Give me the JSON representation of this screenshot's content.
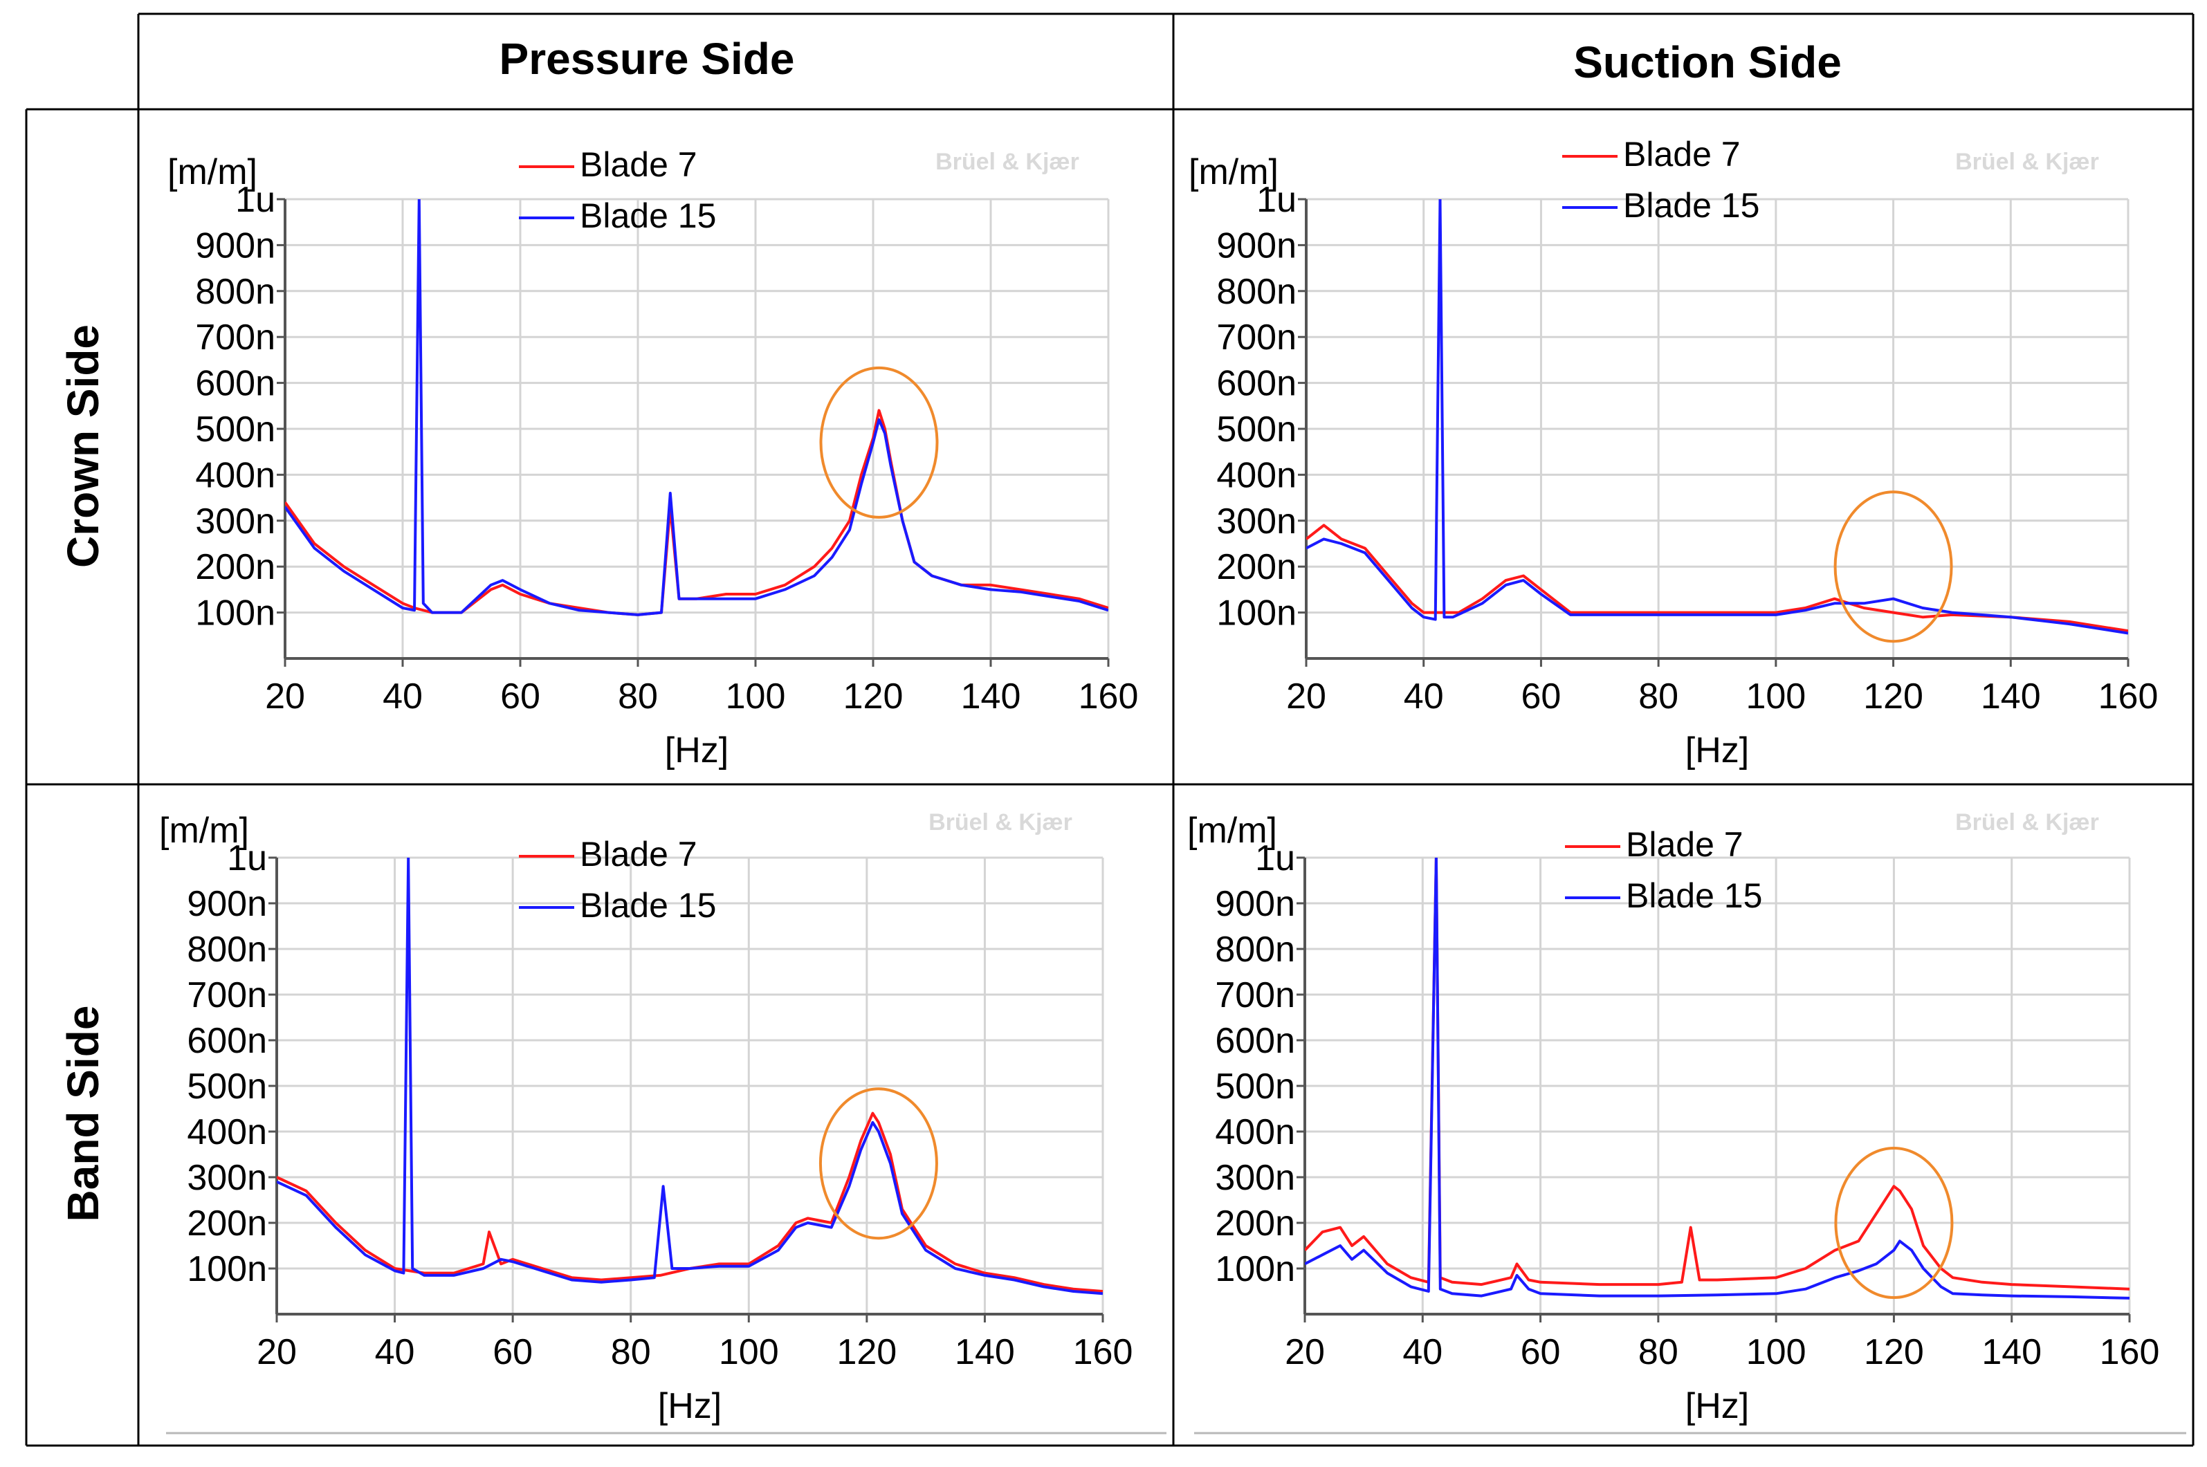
{
  "table": {
    "column_headers": [
      "Pressure Side",
      "Suction Side"
    ],
    "row_headers": [
      "Crown Side",
      "Band Side"
    ]
  },
  "colors": {
    "blade7": "#ff1a1a",
    "blade15": "#1a1aff",
    "highlight": "#f08a2c",
    "grid": "#d4d4d4"
  },
  "watermark": "Brüel & Kjær",
  "chart_data": [
    {
      "id": "crown-pressure",
      "type": "line",
      "xlabel": "[Hz]",
      "ylabel": "[m/m]",
      "xlim": [
        20,
        160
      ],
      "ylim": [
        0,
        1000
      ],
      "xticks": [
        "20",
        "40",
        "60",
        "80",
        "100",
        "120",
        "140",
        "160"
      ],
      "yticks": [
        "100n",
        "200n",
        "300n",
        "400n",
        "500n",
        "600n",
        "700n",
        "800n",
        "900n",
        "1u"
      ],
      "series": [
        {
          "name": "Blade 7",
          "x": [
            20,
            25,
            30,
            35,
            40,
            42,
            45,
            50,
            55,
            57,
            60,
            65,
            70,
            75,
            80,
            84,
            85.5,
            87,
            90,
            95,
            100,
            105,
            110,
            113,
            116,
            118,
            120,
            121,
            122,
            123,
            125,
            127,
            130,
            135,
            140,
            145,
            150,
            155,
            160
          ],
          "values": [
            340,
            250,
            200,
            160,
            120,
            110,
            100,
            100,
            150,
            160,
            140,
            120,
            110,
            100,
            95,
            100,
            330,
            130,
            130,
            140,
            140,
            160,
            200,
            240,
            300,
            400,
            480,
            540,
            500,
            430,
            300,
            210,
            180,
            160,
            160,
            150,
            140,
            130,
            110
          ]
        },
        {
          "name": "Blade 15",
          "x": [
            20,
            25,
            30,
            35,
            40,
            42,
            42.8,
            43.5,
            45,
            50,
            55,
            57,
            60,
            65,
            70,
            75,
            80,
            84,
            85.5,
            87,
            90,
            95,
            100,
            105,
            110,
            113,
            116,
            118,
            120,
            121,
            122,
            123,
            125,
            127,
            130,
            135,
            140,
            145,
            150,
            155,
            160
          ],
          "values": [
            330,
            240,
            190,
            150,
            110,
            105,
            1000,
            120,
            100,
            100,
            160,
            170,
            150,
            120,
            105,
            100,
            95,
            100,
            360,
            130,
            130,
            130,
            130,
            150,
            180,
            220,
            280,
            380,
            470,
            520,
            490,
            420,
            300,
            210,
            180,
            160,
            150,
            145,
            135,
            125,
            105
          ]
        }
      ],
      "highlight": {
        "x": 121,
        "y": 470
      }
    },
    {
      "id": "crown-suction",
      "type": "line",
      "xlabel": "[Hz]",
      "ylabel": "[m/m]",
      "xlim": [
        20,
        160
      ],
      "ylim": [
        0,
        1000
      ],
      "xticks": [
        "20",
        "40",
        "60",
        "80",
        "100",
        "120",
        "140",
        "160"
      ],
      "yticks": [
        "100n",
        "200n",
        "300n",
        "400n",
        "500n",
        "600n",
        "700n",
        "800n",
        "900n",
        "1u"
      ],
      "series": [
        {
          "name": "Blade 7",
          "x": [
            20,
            23,
            26,
            30,
            34,
            38,
            40,
            43,
            46,
            50,
            54,
            57,
            60,
            65,
            70,
            80,
            90,
            100,
            105,
            110,
            115,
            120,
            125,
            130,
            140,
            150,
            160
          ],
          "values": [
            260,
            290,
            260,
            240,
            180,
            120,
            100,
            100,
            100,
            130,
            170,
            180,
            150,
            100,
            100,
            100,
            100,
            100,
            110,
            130,
            110,
            100,
            90,
            95,
            90,
            80,
            60
          ]
        },
        {
          "name": "Blade 15",
          "x": [
            20,
            23,
            26,
            30,
            34,
            38,
            40,
            42,
            42.8,
            43.5,
            45,
            50,
            54,
            57,
            60,
            65,
            70,
            80,
            90,
            100,
            105,
            110,
            115,
            120,
            125,
            130,
            140,
            150,
            160
          ],
          "values": [
            240,
            260,
            250,
            230,
            170,
            110,
            90,
            85,
            1000,
            90,
            90,
            120,
            160,
            170,
            140,
            95,
            95,
            95,
            95,
            95,
            105,
            120,
            120,
            130,
            110,
            100,
            90,
            75,
            55
          ]
        }
      ],
      "highlight": {
        "x": 120,
        "y": 200
      }
    },
    {
      "id": "band-pressure",
      "type": "line",
      "xlabel": "[Hz]",
      "ylabel": "[m/m]",
      "xlim": [
        20,
        160
      ],
      "ylim": [
        0,
        1000
      ],
      "xticks": [
        "20",
        "40",
        "60",
        "80",
        "100",
        "120",
        "140",
        "160"
      ],
      "yticks": [
        "100n",
        "200n",
        "300n",
        "400n",
        "500n",
        "600n",
        "700n",
        "800n",
        "900n",
        "1u"
      ],
      "series": [
        {
          "name": "Blade 7",
          "x": [
            20,
            25,
            30,
            35,
            40,
            45,
            50,
            55,
            56,
            58,
            60,
            65,
            70,
            75,
            80,
            85,
            90,
            95,
            100,
            105,
            108,
            110,
            114,
            117,
            119,
            121,
            122,
            124,
            126,
            130,
            135,
            140,
            145,
            150,
            155,
            160
          ],
          "values": [
            300,
            270,
            200,
            140,
            100,
            90,
            90,
            110,
            180,
            110,
            120,
            100,
            80,
            75,
            80,
            85,
            100,
            110,
            110,
            150,
            200,
            210,
            200,
            300,
            380,
            440,
            420,
            350,
            230,
            150,
            110,
            90,
            80,
            65,
            55,
            50
          ]
        },
        {
          "name": "Blade 15",
          "x": [
            20,
            25,
            30,
            35,
            40,
            41.5,
            42.3,
            43,
            45,
            50,
            55,
            58,
            60,
            65,
            70,
            75,
            80,
            84,
            85.5,
            87,
            90,
            95,
            100,
            105,
            108,
            110,
            114,
            117,
            119,
            121,
            122,
            124,
            126,
            130,
            135,
            140,
            145,
            150,
            155,
            160
          ],
          "values": [
            290,
            260,
            190,
            130,
            95,
            90,
            1000,
            100,
            85,
            85,
            100,
            120,
            115,
            95,
            75,
            70,
            75,
            80,
            280,
            100,
            100,
            105,
            105,
            140,
            190,
            200,
            190,
            280,
            360,
            420,
            400,
            330,
            220,
            140,
            100,
            85,
            75,
            60,
            50,
            45
          ]
        }
      ],
      "highlight": {
        "x": 122,
        "y": 330
      }
    },
    {
      "id": "band-suction",
      "type": "line",
      "xlabel": "[Hz]",
      "ylabel": "[m/m]",
      "xlim": [
        20,
        160
      ],
      "ylim": [
        0,
        1000
      ],
      "xticks": [
        "20",
        "40",
        "60",
        "80",
        "100",
        "120",
        "140",
        "160"
      ],
      "yticks": [
        "100n",
        "200n",
        "300n",
        "400n",
        "500n",
        "600n",
        "700n",
        "800n",
        "900n",
        "1u"
      ],
      "series": [
        {
          "name": "Blade 7",
          "x": [
            20,
            23,
            26,
            28,
            30,
            34,
            38,
            41,
            42.3,
            43,
            45,
            50,
            55,
            56,
            58,
            60,
            70,
            80,
            84,
            85.5,
            87,
            90,
            100,
            105,
            110,
            114,
            117,
            119,
            120,
            121,
            123,
            125,
            128,
            130,
            135,
            140,
            150,
            160
          ],
          "values": [
            140,
            180,
            190,
            150,
            170,
            110,
            80,
            70,
            1000,
            80,
            70,
            65,
            80,
            110,
            75,
            70,
            65,
            65,
            70,
            190,
            75,
            75,
            80,
            100,
            140,
            160,
            220,
            260,
            280,
            270,
            230,
            150,
            100,
            80,
            70,
            65,
            60,
            55
          ]
        },
        {
          "name": "Blade 15",
          "x": [
            20,
            23,
            26,
            28,
            30,
            34,
            38,
            41,
            42.3,
            43,
            45,
            50,
            55,
            56,
            58,
            60,
            70,
            80,
            90,
            100,
            105,
            110,
            114,
            117,
            119,
            120,
            121,
            123,
            125,
            128,
            130,
            135,
            140,
            150,
            160
          ],
          "values": [
            110,
            130,
            150,
            120,
            140,
            90,
            60,
            50,
            1000,
            55,
            45,
            40,
            55,
            85,
            55,
            45,
            40,
            40,
            42,
            45,
            55,
            80,
            95,
            110,
            130,
            140,
            160,
            140,
            100,
            60,
            45,
            42,
            40,
            38,
            35
          ]
        }
      ],
      "highlight": {
        "x": 120,
        "y": 200
      }
    }
  ]
}
